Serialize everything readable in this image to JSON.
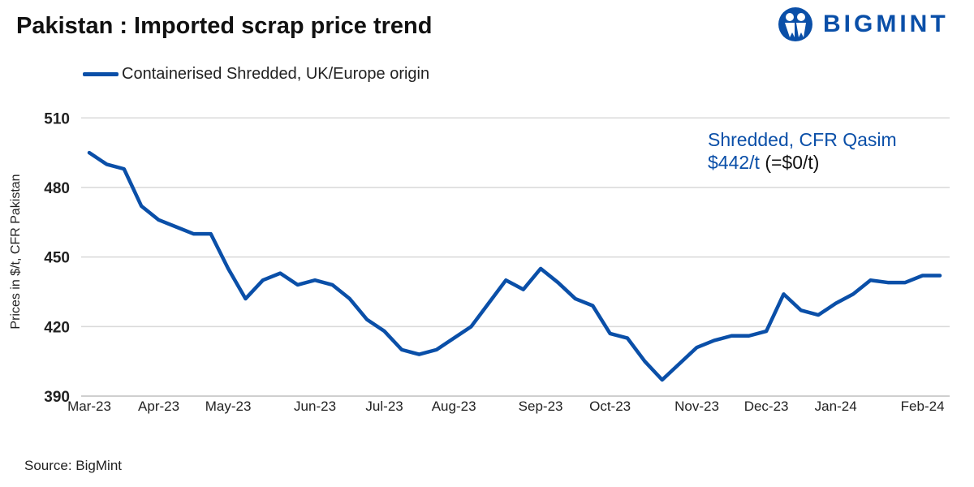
{
  "header": {
    "title": "Pakistan : Imported scrap price trend",
    "logo_text": "BIGMINT"
  },
  "source": "Source: BigMint",
  "annotation": {
    "line1": "Shredded, CFR Qasim",
    "price": "$442/t",
    "change": "(=$0/t)"
  },
  "chart_data": {
    "type": "line",
    "title": "Pakistan : Imported scrap price trend",
    "ylabel": "Prices in $/t, CFR Pakistan",
    "xlabel": "",
    "ylim": [
      390,
      510
    ],
    "yticks": [
      390,
      420,
      450,
      480,
      510
    ],
    "grid": true,
    "legend_position": "top-left",
    "x_tick_labels": [
      {
        "label": "Mar-23",
        "at_index": 0
      },
      {
        "label": "Apr-23",
        "at_index": 4
      },
      {
        "label": "May-23",
        "at_index": 8
      },
      {
        "label": "Jun-23",
        "at_index": 13
      },
      {
        "label": "Jul-23",
        "at_index": 17
      },
      {
        "label": "Aug-23",
        "at_index": 21
      },
      {
        "label": "Sep-23",
        "at_index": 26
      },
      {
        "label": "Oct-23",
        "at_index": 30
      },
      {
        "label": "Nov-23",
        "at_index": 35
      },
      {
        "label": "Dec-23",
        "at_index": 39
      },
      {
        "label": "Jan-24",
        "at_index": 43
      },
      {
        "label": "Feb-24",
        "at_index": 48
      }
    ],
    "series": [
      {
        "name": "Containerised Shredded, UK/Europe origin",
        "color": "#0a4fa8",
        "values": [
          495,
          490,
          488,
          472,
          466,
          463,
          460,
          460,
          445,
          432,
          440,
          443,
          438,
          440,
          438,
          432,
          423,
          418,
          410,
          408,
          410,
          415,
          420,
          430,
          440,
          436,
          445,
          439,
          432,
          429,
          417,
          415,
          405,
          397,
          404,
          411,
          414,
          416,
          416,
          418,
          434,
          427,
          425,
          430,
          434,
          440,
          439,
          439,
          442,
          442
        ]
      }
    ]
  }
}
